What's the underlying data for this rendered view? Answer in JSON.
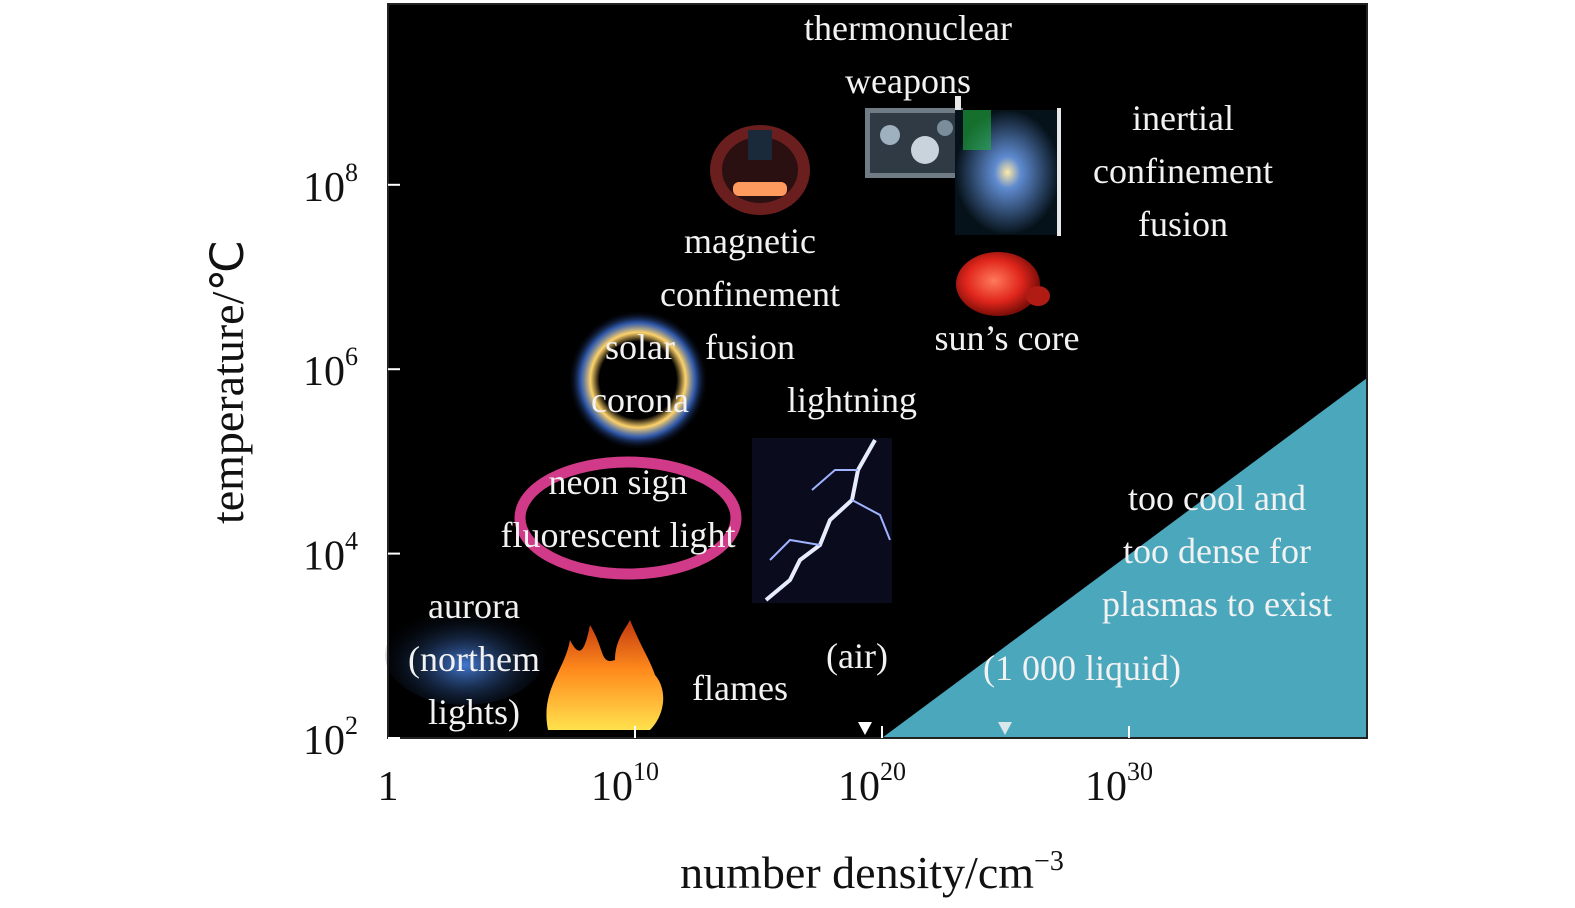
{
  "chart_data": {
    "type": "scatter",
    "title": "",
    "xlabel": "number density/cm",
    "xlabel_sup": "−3",
    "ylabel": "temperature/℃",
    "xscale": "log",
    "yscale": "log",
    "xlim": [
      1,
      1e+40
    ],
    "ylim": [
      100,
      10000000000.0
    ],
    "x_ticks": [
      {
        "base": "1",
        "exp": ""
      },
      {
        "base": "10",
        "exp": "10"
      },
      {
        "base": "10",
        "exp": "20"
      },
      {
        "base": "10",
        "exp": "30"
      }
    ],
    "y_ticks": [
      {
        "base": "10",
        "exp": "2"
      },
      {
        "base": "10",
        "exp": "4"
      },
      {
        "base": "10",
        "exp": "6"
      },
      {
        "base": "10",
        "exp": "8"
      }
    ],
    "region": {
      "label": [
        "too cool and",
        "too dense for",
        "plasmas to exist"
      ],
      "color": "#4aa7bc",
      "boundary": [
        {
          "x": 1e+20,
          "y": 100
        },
        {
          "x": 1e+40,
          "y": 1000000.0
        }
      ]
    },
    "points": [
      {
        "name": "thermonuclear weapons",
        "lines": [
          "thermonuclear",
          "weapons"
        ],
        "x": 1e+22,
        "y": 500000000.0,
        "color": "#c9d3dc"
      },
      {
        "name": "inertial confinement fusion",
        "lines": [
          "inertial",
          "confinement",
          "fusion"
        ],
        "x": 1e+25,
        "y": 100000000.0,
        "color": "#5f8bd0"
      },
      {
        "name": "magnetic confinement",
        "lines": [
          "magnetic",
          "confinement"
        ],
        "x": 1000000000000000.0,
        "y": 100000000.0,
        "color": "#ff5a4e"
      },
      {
        "name": "sun's core",
        "lines": [
          "sun’s core"
        ],
        "x": 1e+25,
        "y": 15000000.0,
        "color": "#e52a22"
      },
      {
        "name": "solar corona",
        "lines": [
          "solar",
          "corona"
        ],
        "x": 10000000000.0,
        "y": 1000000.0,
        "color": "#ffd36a"
      },
      {
        "name": "fusion",
        "lines": [
          "fusion"
        ],
        "x": 1000000000000000.0,
        "y": 1000000.0,
        "color": "#f2f2f2"
      },
      {
        "name": "lightning",
        "lines": [
          "lightning"
        ],
        "x": 1e+19,
        "y": 20000.0,
        "color": "#9fb3ff"
      },
      {
        "name": "neon sign fluorescent light",
        "lines": [
          "neon sign",
          "fluorescent light"
        ],
        "x": 10000000000.0,
        "y": 30000.0,
        "color": "#d13a88"
      },
      {
        "name": "aurora (northern lights)",
        "lines": [
          "aurora",
          "(northem",
          "lights)"
        ],
        "x": 1000.0,
        "y": 1000,
        "color": "#2d63c8"
      },
      {
        "name": "flames",
        "lines": [
          "flames"
        ],
        "x": 1000000000.0,
        "y": 500,
        "color": "#ff8a1c"
      },
      {
        "name": "(air)",
        "lines": [
          "(air)"
        ],
        "x": 1e+19,
        "y": 100,
        "color": "#ffffff"
      },
      {
        "name": "(1 000 liquid)",
        "lines": [
          "(1 000 liquid)"
        ],
        "x": 1e+24,
        "y": 100,
        "color": "#ffffff"
      }
    ],
    "background_color": "#000000",
    "grid": false,
    "legend": "none"
  }
}
